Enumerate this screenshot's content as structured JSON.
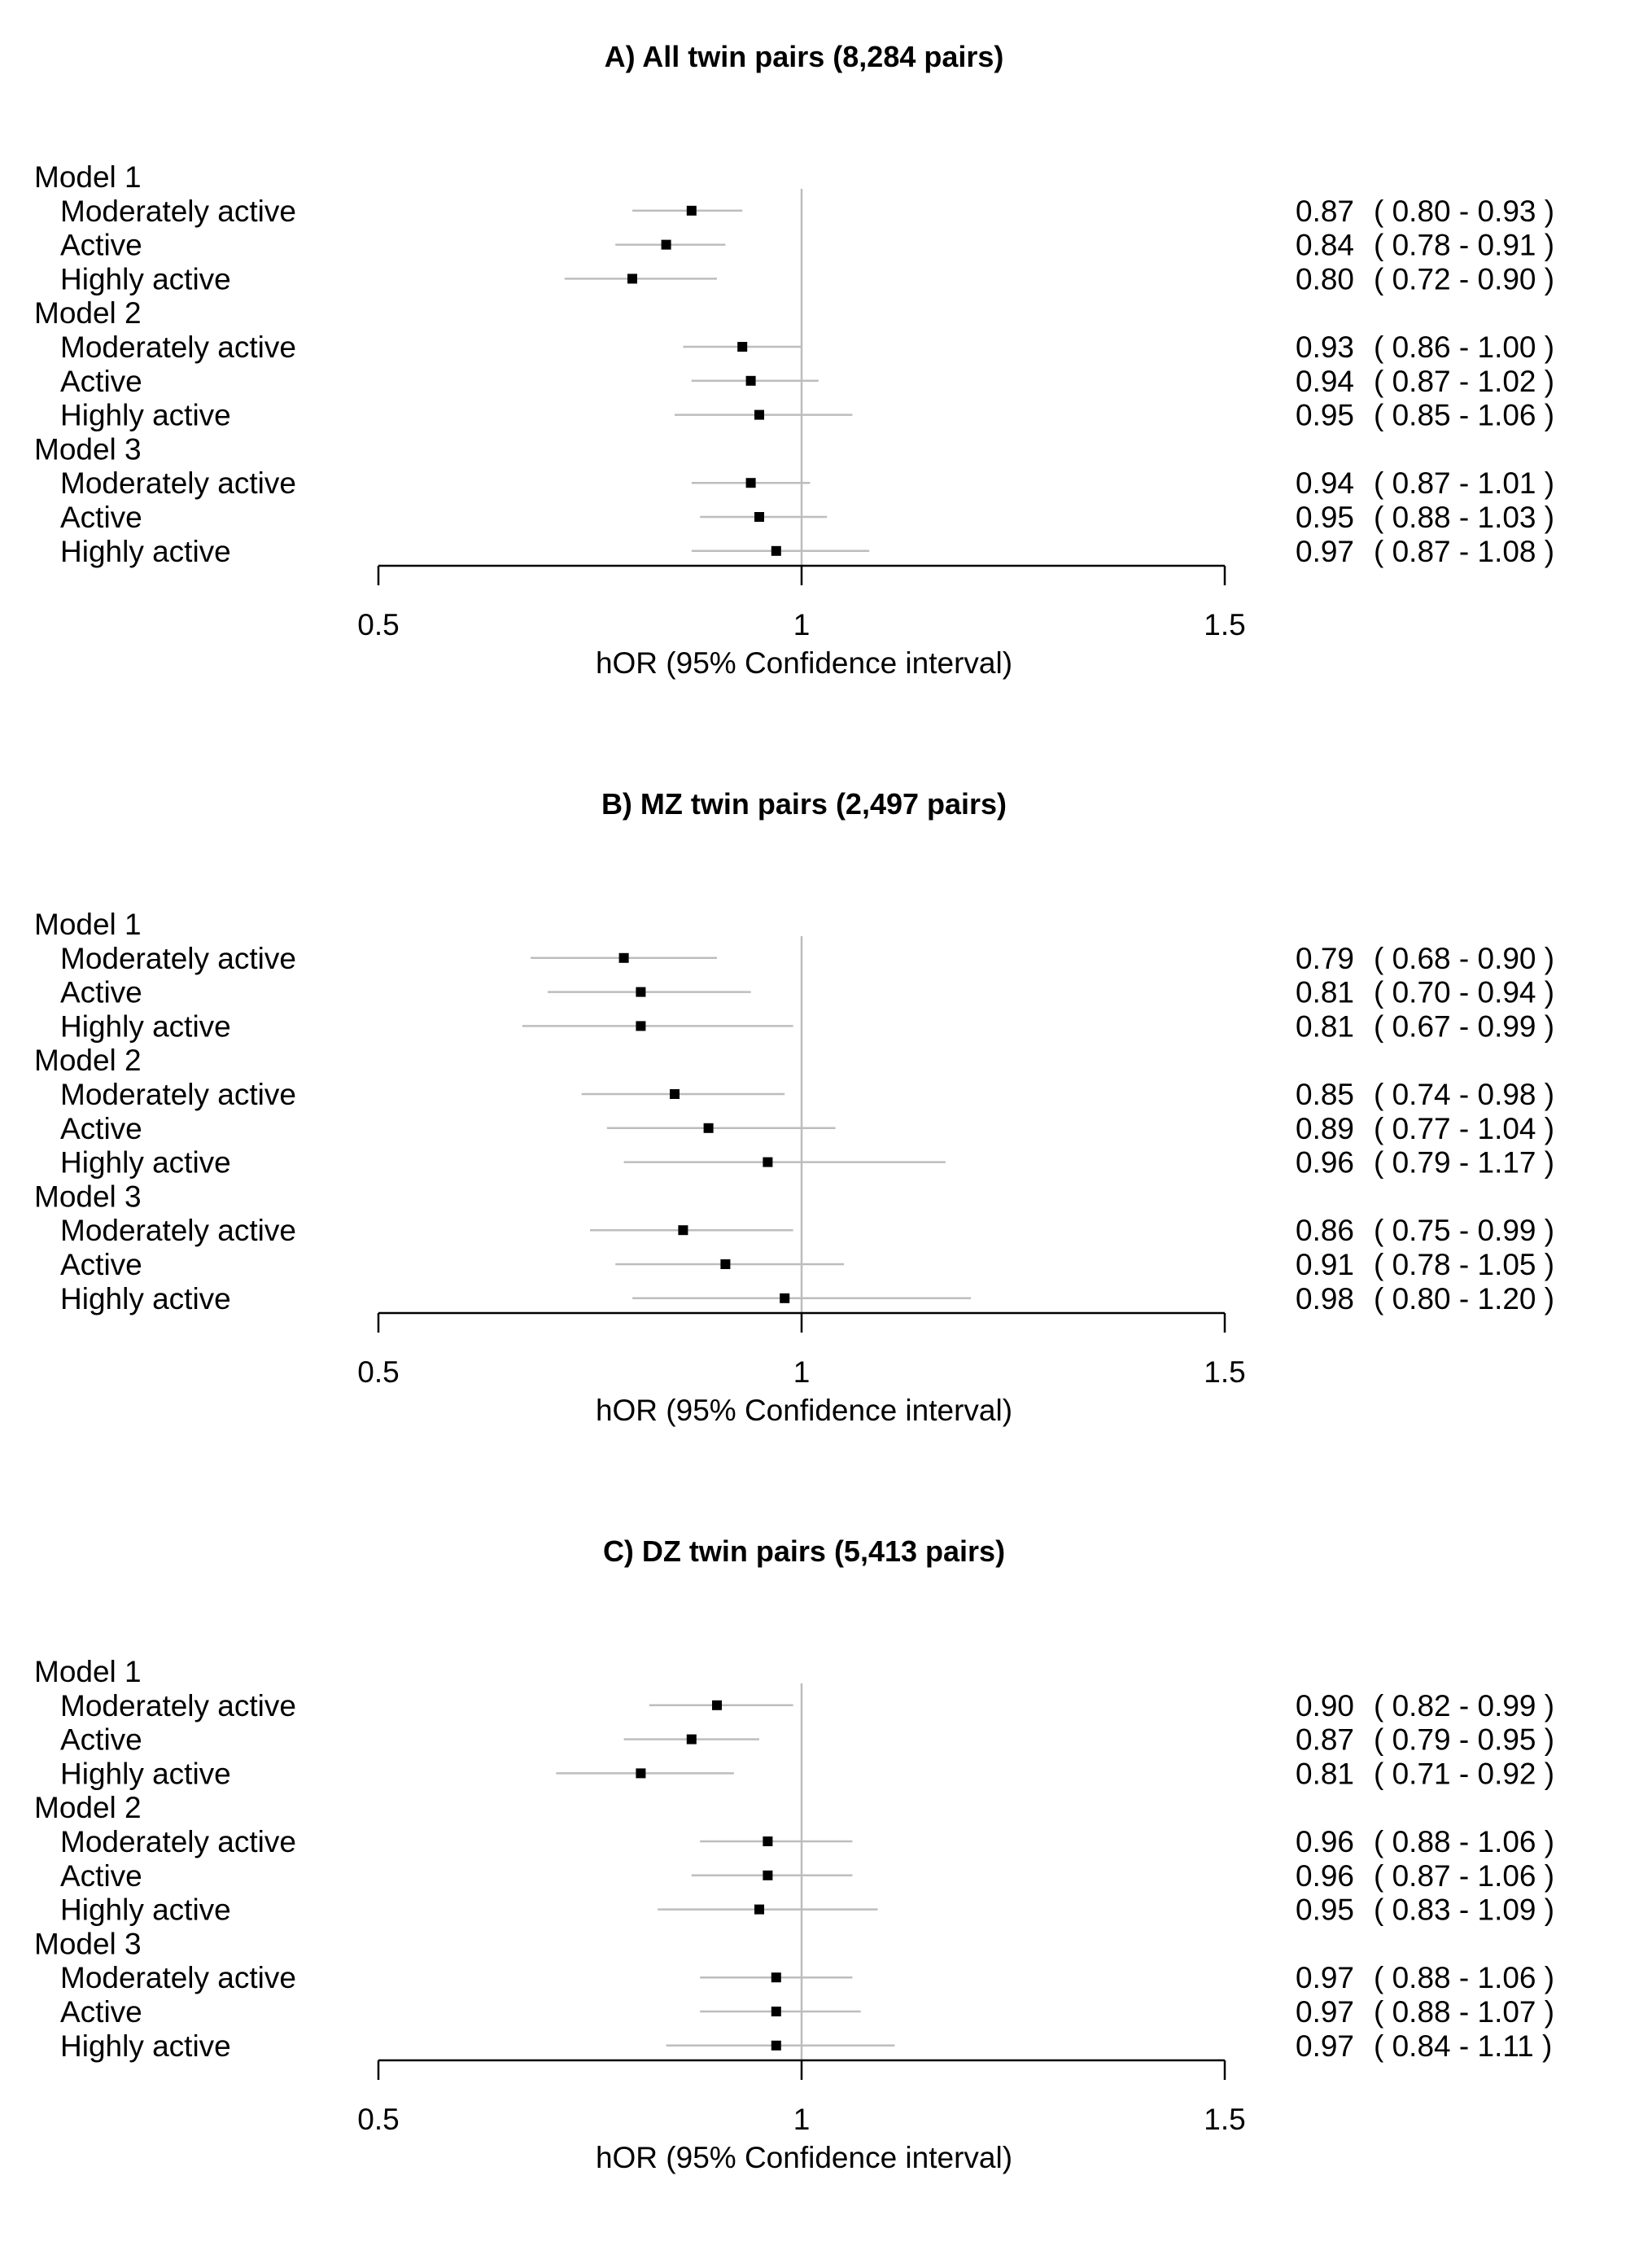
{
  "chart_data": [
    {
      "type": "forest",
      "title": "A) All twin pairs (8,284 pairs)",
      "xlabel": "hOR (95% Confidence interval)",
      "xlim": [
        0.5,
        1.5
      ],
      "xticks": [
        "0.5",
        "1",
        "1.5"
      ],
      "reference_line": 1,
      "groups": [
        {
          "label": "Model 1",
          "rows": [
            {
              "label": "Moderately active",
              "est": 0.87,
              "lo": 0.8,
              "hi": 0.93,
              "text_est": "0.87",
              "text_ci": "( 0.80 - 0.93 )"
            },
            {
              "label": "Active",
              "est": 0.84,
              "lo": 0.78,
              "hi": 0.91,
              "text_est": "0.84",
              "text_ci": "( 0.78 - 0.91 )"
            },
            {
              "label": "Highly active",
              "est": 0.8,
              "lo": 0.72,
              "hi": 0.9,
              "text_est": "0.80",
              "text_ci": "( 0.72 - 0.90 )"
            }
          ]
        },
        {
          "label": "Model 2",
          "rows": [
            {
              "label": "Moderately active",
              "est": 0.93,
              "lo": 0.86,
              "hi": 1.0,
              "text_est": "0.93",
              "text_ci": "( 0.86 - 1.00 )"
            },
            {
              "label": "Active",
              "est": 0.94,
              "lo": 0.87,
              "hi": 1.02,
              "text_est": "0.94",
              "text_ci": "( 0.87 - 1.02 )"
            },
            {
              "label": "Highly active",
              "est": 0.95,
              "lo": 0.85,
              "hi": 1.06,
              "text_est": "0.95",
              "text_ci": "( 0.85 - 1.06 )"
            }
          ]
        },
        {
          "label": "Model 3",
          "rows": [
            {
              "label": "Moderately active",
              "est": 0.94,
              "lo": 0.87,
              "hi": 1.01,
              "text_est": "0.94",
              "text_ci": "( 0.87 - 1.01 )"
            },
            {
              "label": "Active",
              "est": 0.95,
              "lo": 0.88,
              "hi": 1.03,
              "text_est": "0.95",
              "text_ci": "( 0.88 - 1.03 )"
            },
            {
              "label": "Highly active",
              "est": 0.97,
              "lo": 0.87,
              "hi": 1.08,
              "text_est": "0.97",
              "text_ci": "( 0.87 - 1.08 )"
            }
          ]
        }
      ]
    },
    {
      "type": "forest",
      "title": "B) MZ twin pairs (2,497 pairs)",
      "xlabel": "hOR (95% Confidence interval)",
      "xlim": [
        0.5,
        1.5
      ],
      "xticks": [
        "0.5",
        "1",
        "1.5"
      ],
      "reference_line": 1,
      "groups": [
        {
          "label": "Model 1",
          "rows": [
            {
              "label": "Moderately active",
              "est": 0.79,
              "lo": 0.68,
              "hi": 0.9,
              "text_est": "0.79",
              "text_ci": "( 0.68 - 0.90 )"
            },
            {
              "label": "Active",
              "est": 0.81,
              "lo": 0.7,
              "hi": 0.94,
              "text_est": "0.81",
              "text_ci": "( 0.70 - 0.94 )"
            },
            {
              "label": "Highly active",
              "est": 0.81,
              "lo": 0.67,
              "hi": 0.99,
              "text_est": "0.81",
              "text_ci": "( 0.67 - 0.99 )"
            }
          ]
        },
        {
          "label": "Model 2",
          "rows": [
            {
              "label": "Moderately active",
              "est": 0.85,
              "lo": 0.74,
              "hi": 0.98,
              "text_est": "0.85",
              "text_ci": "( 0.74 - 0.98 )"
            },
            {
              "label": "Active",
              "est": 0.89,
              "lo": 0.77,
              "hi": 1.04,
              "text_est": "0.89",
              "text_ci": "( 0.77 - 1.04 )"
            },
            {
              "label": "Highly active",
              "est": 0.96,
              "lo": 0.79,
              "hi": 1.17,
              "text_est": "0.96",
              "text_ci": "( 0.79 - 1.17 )"
            }
          ]
        },
        {
          "label": "Model 3",
          "rows": [
            {
              "label": "Moderately active",
              "est": 0.86,
              "lo": 0.75,
              "hi": 0.99,
              "text_est": "0.86",
              "text_ci": "( 0.75 - 0.99 )"
            },
            {
              "label": "Active",
              "est": 0.91,
              "lo": 0.78,
              "hi": 1.05,
              "text_est": "0.91",
              "text_ci": "( 0.78 - 1.05 )"
            },
            {
              "label": "Highly active",
              "est": 0.98,
              "lo": 0.8,
              "hi": 1.2,
              "text_est": "0.98",
              "text_ci": "( 0.80 - 1.20 )"
            }
          ]
        }
      ]
    },
    {
      "type": "forest",
      "title": "C) DZ twin pairs (5,413 pairs)",
      "xlabel": "hOR (95% Confidence interval)",
      "xlim": [
        0.5,
        1.5
      ],
      "xticks": [
        "0.5",
        "1",
        "1.5"
      ],
      "reference_line": 1,
      "groups": [
        {
          "label": "Model 1",
          "rows": [
            {
              "label": "Moderately active",
              "est": 0.9,
              "lo": 0.82,
              "hi": 0.99,
              "text_est": "0.90",
              "text_ci": "( 0.82 - 0.99 )"
            },
            {
              "label": "Active",
              "est": 0.87,
              "lo": 0.79,
              "hi": 0.95,
              "text_est": "0.87",
              "text_ci": "( 0.79 - 0.95 )"
            },
            {
              "label": "Highly active",
              "est": 0.81,
              "lo": 0.71,
              "hi": 0.92,
              "text_est": "0.81",
              "text_ci": "( 0.71 - 0.92 )"
            }
          ]
        },
        {
          "label": "Model 2",
          "rows": [
            {
              "label": "Moderately active",
              "est": 0.96,
              "lo": 0.88,
              "hi": 1.06,
              "text_est": "0.96",
              "text_ci": "( 0.88 - 1.06 )"
            },
            {
              "label": "Active",
              "est": 0.96,
              "lo": 0.87,
              "hi": 1.06,
              "text_est": "0.96",
              "text_ci": "( 0.87 - 1.06 )"
            },
            {
              "label": "Highly active",
              "est": 0.95,
              "lo": 0.83,
              "hi": 1.09,
              "text_est": "0.95",
              "text_ci": "( 0.83 - 1.09 )"
            }
          ]
        },
        {
          "label": "Model 3",
          "rows": [
            {
              "label": "Moderately active",
              "est": 0.97,
              "lo": 0.88,
              "hi": 1.06,
              "text_est": "0.97",
              "text_ci": "( 0.88 - 1.06 )"
            },
            {
              "label": "Active",
              "est": 0.97,
              "lo": 0.88,
              "hi": 1.07,
              "text_est": "0.97",
              "text_ci": "( 0.88 - 1.07 )"
            },
            {
              "label": "Highly active",
              "est": 0.97,
              "lo": 0.84,
              "hi": 1.11,
              "text_est": "0.97",
              "text_ci": "( 0.84 - 1.11 )"
            }
          ]
        }
      ]
    }
  ]
}
